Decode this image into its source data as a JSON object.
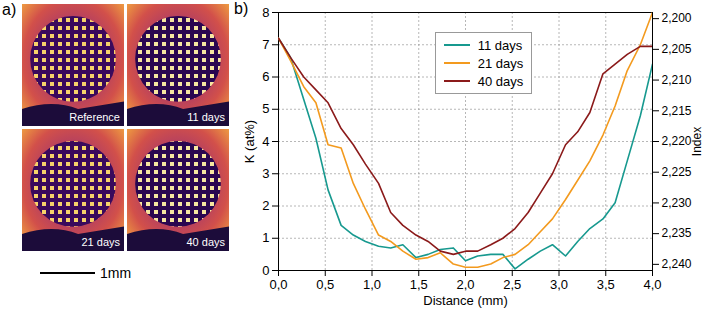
{
  "panel_a": {
    "label": "a)",
    "images": [
      "Reference",
      "11 days",
      "21 days",
      "40 days"
    ],
    "scale_bar": "1mm"
  },
  "chart_data": {
    "type": "line",
    "title": "b)",
    "xlabel": "Distance (mm)",
    "ylabel": "K (at%)",
    "y2label": "Index",
    "x": [
      0,
      0.13,
      0.27,
      0.4,
      0.53,
      0.67,
      0.8,
      0.93,
      1.07,
      1.2,
      1.33,
      1.47,
      1.6,
      1.73,
      1.87,
      2.0,
      2.13,
      2.27,
      2.4,
      2.53,
      2.67,
      2.8,
      2.93,
      3.07,
      3.2,
      3.33,
      3.47,
      3.6,
      3.73,
      3.87,
      4.0
    ],
    "series": [
      {
        "name": "11 days",
        "color": "#17998f",
        "values": [
          7.2,
          6.6,
          5.3,
          4.1,
          2.5,
          1.4,
          1.1,
          0.9,
          0.75,
          0.7,
          0.8,
          0.4,
          0.5,
          0.65,
          0.7,
          0.3,
          0.45,
          0.5,
          0.5,
          0.05,
          0.35,
          0.6,
          0.8,
          0.45,
          0.9,
          1.3,
          1.6,
          2.1,
          3.4,
          4.8,
          6.4
        ]
      },
      {
        "name": "21 days",
        "color": "#f39a1e",
        "values": [
          7.2,
          6.5,
          5.7,
          5.2,
          3.9,
          3.8,
          2.7,
          1.9,
          1.1,
          0.9,
          0.6,
          0.35,
          0.4,
          0.55,
          0.2,
          0.1,
          0.1,
          0.2,
          0.4,
          0.5,
          0.8,
          1.2,
          1.6,
          2.2,
          2.8,
          3.4,
          4.2,
          5.1,
          6.2,
          7.0,
          8.0
        ]
      },
      {
        "name": "40 days",
        "color": "#8b1a1a",
        "values": [
          7.2,
          6.6,
          6.0,
          5.6,
          5.2,
          4.4,
          3.9,
          3.3,
          2.7,
          1.8,
          1.4,
          1.1,
          0.9,
          0.6,
          0.5,
          0.6,
          0.6,
          0.8,
          1.0,
          1.3,
          1.8,
          2.4,
          3.0,
          3.9,
          4.3,
          4.9,
          6.1,
          6.4,
          6.7,
          6.95,
          6.95
        ]
      }
    ],
    "xlim": [
      0,
      4
    ],
    "xticks": [
      {
        "value": 0,
        "label": "0,0"
      },
      {
        "value": 0.5,
        "label": "0,5"
      },
      {
        "value": 1,
        "label": "1,0"
      },
      {
        "value": 1.5,
        "label": "1,5"
      },
      {
        "value": 2,
        "label": "2,0"
      },
      {
        "value": 2.5,
        "label": "2,5"
      },
      {
        "value": 3,
        "label": "3,0"
      },
      {
        "value": 3.5,
        "label": "3,5"
      },
      {
        "value": 4,
        "label": "4,0"
      }
    ],
    "ylim": [
      0,
      8
    ],
    "yticks": [
      0,
      1,
      2,
      3,
      4,
      5,
      6,
      7,
      8
    ],
    "y2lim": [
      2.241,
      2.199
    ],
    "y2ticks": [
      {
        "value": 2.2,
        "label": "2,200"
      },
      {
        "value": 2.205,
        "label": "2,205"
      },
      {
        "value": 2.21,
        "label": "2,210"
      },
      {
        "value": 2.215,
        "label": "2,215"
      },
      {
        "value": 2.22,
        "label": "2,220"
      },
      {
        "value": 2.225,
        "label": "2,225"
      },
      {
        "value": 2.23,
        "label": "2,230"
      },
      {
        "value": 2.235,
        "label": "2,235"
      },
      {
        "value": 2.24,
        "label": "2,240"
      }
    ],
    "grid": true,
    "legend": "top"
  }
}
